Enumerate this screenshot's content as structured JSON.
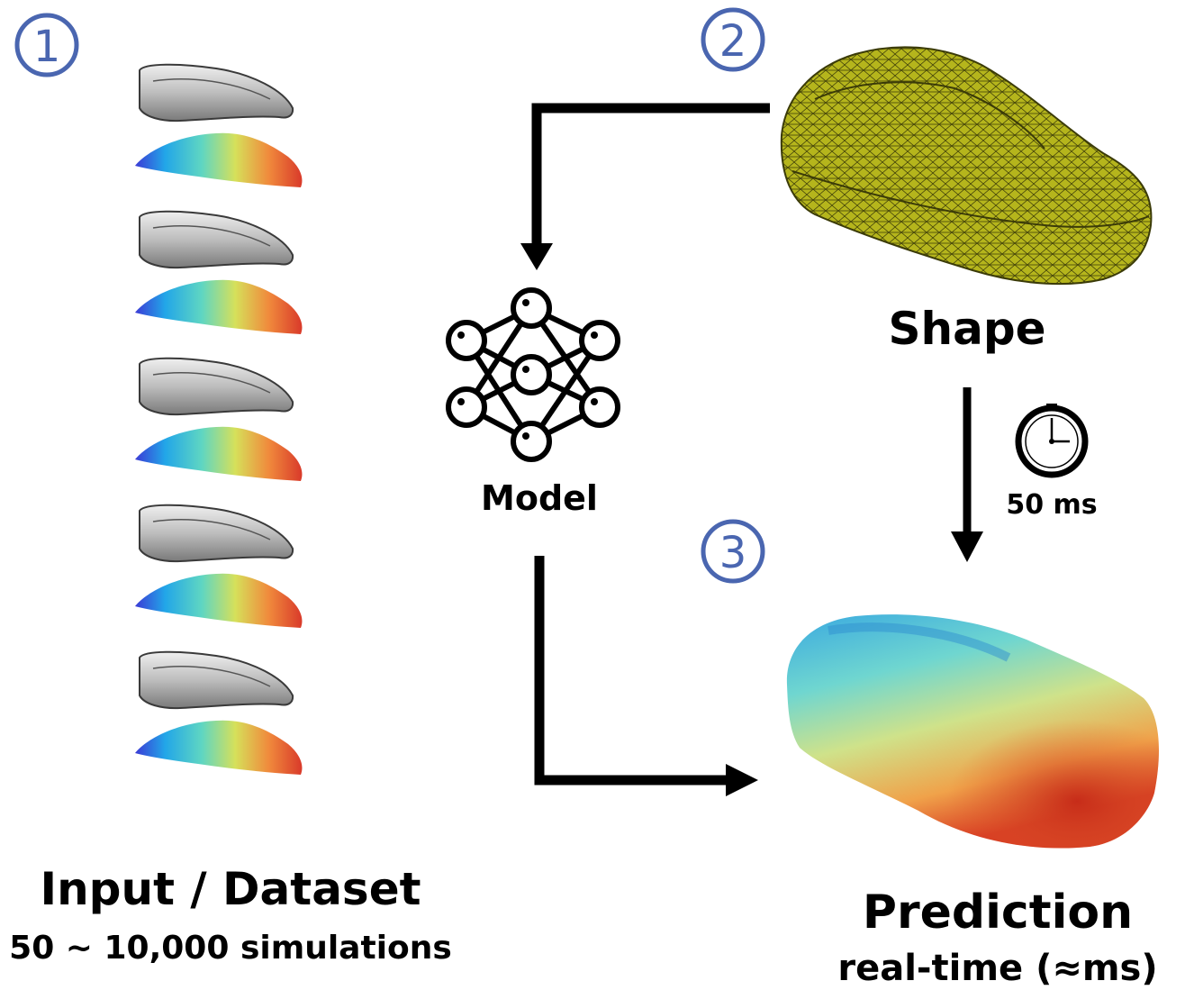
{
  "steps": [
    "1",
    "2",
    "3"
  ],
  "dataset": {
    "title": "Input / Dataset",
    "subtitle": "50 ~ 10,000 simulations",
    "sample_count": 5
  },
  "model": {
    "label": "Model",
    "icon": "neural-network-icon"
  },
  "shape": {
    "label": "Shape",
    "icon": "car-mesh-icon"
  },
  "timing": {
    "label": "50 ms",
    "icon": "clock-icon"
  },
  "prediction": {
    "title": "Prediction",
    "subtitle": "real-time (≈ms)",
    "icon": "car-pressure-field-icon"
  },
  "colors": {
    "step": "#4a66b0",
    "arrow": "#000000",
    "mesh": "#b8b81a",
    "colormap": [
      "#3b3bd6",
      "#22a6e8",
      "#5fd6c2",
      "#d6e05a",
      "#f08a3c",
      "#d93a2a"
    ]
  }
}
